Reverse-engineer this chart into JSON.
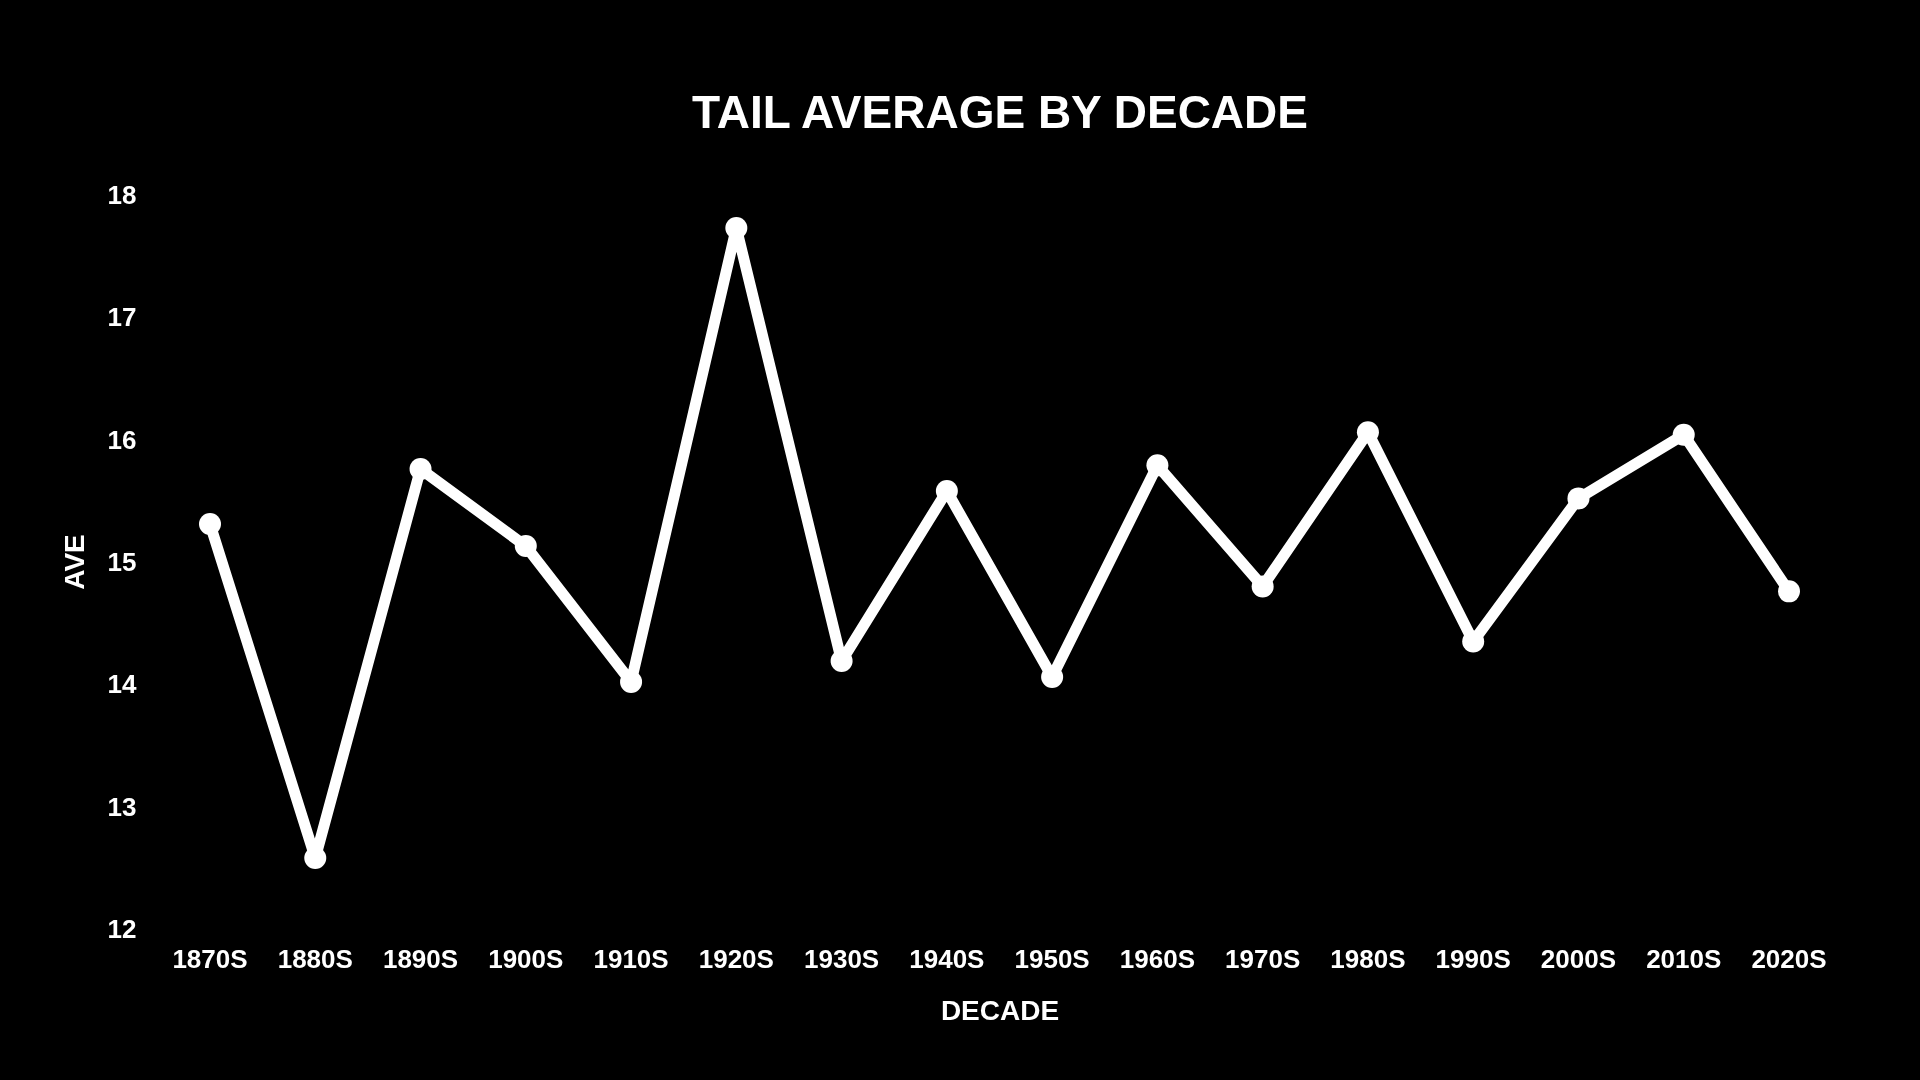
{
  "chart_data": {
    "type": "line",
    "title": "TAIL AVERAGE BY DECADE",
    "xlabel": "DECADE",
    "ylabel": "AVE",
    "categories": [
      "1870S",
      "1880S",
      "1890S",
      "1900S",
      "1910S",
      "1920S",
      "1930S",
      "1940S",
      "1950S",
      "1960S",
      "1970S",
      "1980S",
      "1990S",
      "2000S",
      "2010S",
      "2020S"
    ],
    "series": [
      {
        "color": "#ffffff",
        "values": [
          15.31,
          12.58,
          15.76,
          15.13,
          14.02,
          17.73,
          14.19,
          15.58,
          14.06,
          15.79,
          14.8,
          16.06,
          14.35,
          15.52,
          16.04,
          14.76
        ]
      }
    ],
    "ylim": [
      12,
      18
    ],
    "yticks": [
      12,
      13,
      14,
      15,
      16,
      17,
      18
    ],
    "marker": "circle",
    "line_style": "solid"
  }
}
